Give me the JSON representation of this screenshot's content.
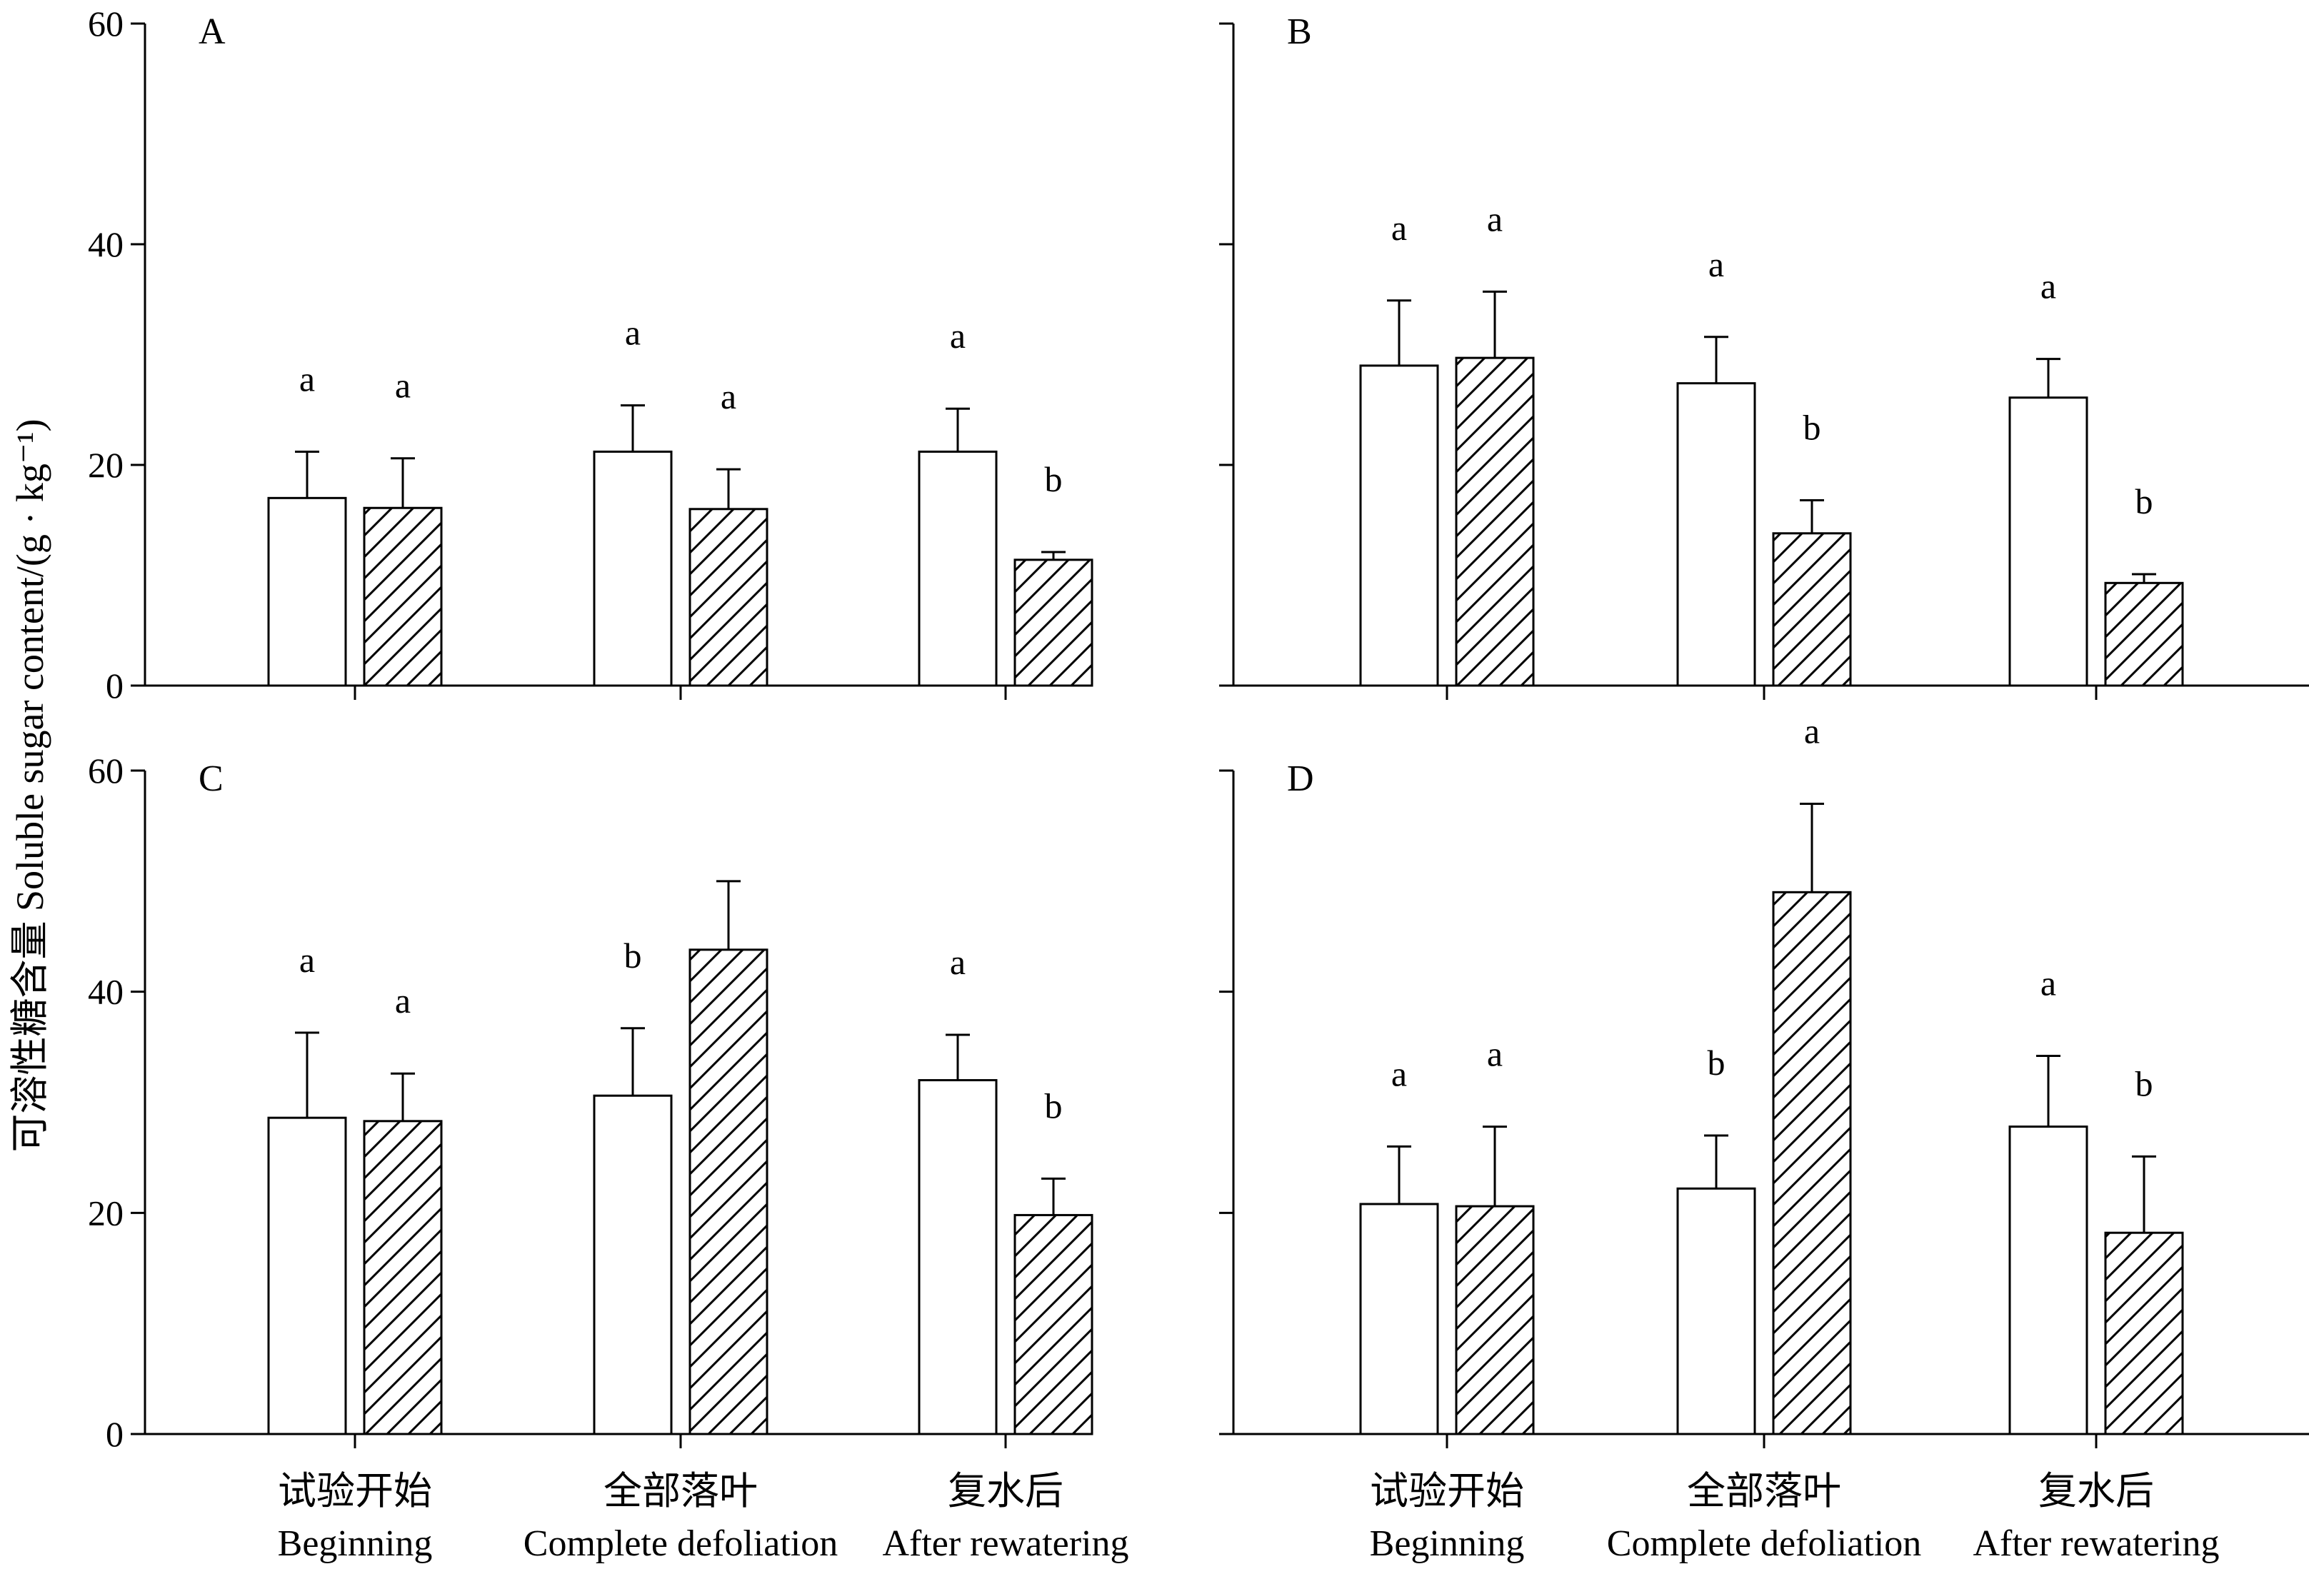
{
  "chart_data": {
    "type": "bar",
    "ylabel": "可溶性糖含量 Soluble sugar content/(g · kg⁻¹)",
    "ylim": [
      0,
      60
    ],
    "yticks": [
      "0",
      "20",
      "40",
      "60"
    ],
    "categories": [
      {
        "cn": "试验开始",
        "en": "Beginning"
      },
      {
        "cn": "全部落叶",
        "en": "Complete defoliation"
      },
      {
        "cn": "复水后",
        "en": "After rewatering"
      }
    ],
    "series_styles": [
      "open",
      "hatched"
    ],
    "panels": [
      {
        "label": "A",
        "series": [
          {
            "style": "open",
            "values": [
              17.0,
              21.2,
              21.2
            ],
            "errors": [
              4.2,
              4.2,
              3.9
            ],
            "letters": [
              "a",
              "a",
              "a"
            ]
          },
          {
            "style": "hatched",
            "values": [
              16.1,
              16.0,
              11.4
            ],
            "errors": [
              4.5,
              3.6,
              0.7
            ],
            "letters": [
              "a",
              "a",
              "b"
            ]
          }
        ]
      },
      {
        "label": "B",
        "series": [
          {
            "style": "open",
            "values": [
              29.0,
              27.4,
              26.1
            ],
            "errors": [
              5.9,
              4.2,
              3.5
            ],
            "letters": [
              "a",
              "a",
              "a"
            ]
          },
          {
            "style": "hatched",
            "values": [
              29.7,
              13.8,
              9.3
            ],
            "errors": [
              6.0,
              3.0,
              0.8
            ],
            "letters": [
              "a",
              "b",
              "b"
            ]
          }
        ]
      },
      {
        "label": "C",
        "series": [
          {
            "style": "open",
            "values": [
              28.6,
              30.6,
              32.0
            ],
            "errors": [
              7.7,
              6.1,
              4.1
            ],
            "letters": [
              "a",
              "b",
              "a"
            ]
          },
          {
            "style": "hatched",
            "values": [
              28.3,
              43.8,
              19.8
            ],
            "errors": [
              4.3,
              6.2,
              3.3
            ],
            "letters": [
              "a",
              "",
              "b"
            ]
          }
        ]
      },
      {
        "label": "D",
        "series": [
          {
            "style": "open",
            "values": [
              20.8,
              22.2,
              27.8
            ],
            "errors": [
              5.2,
              4.8,
              6.4
            ],
            "letters": [
              "a",
              "b",
              "a"
            ]
          },
          {
            "style": "hatched",
            "values": [
              20.6,
              49.0,
              18.2
            ],
            "errors": [
              7.2,
              8.0,
              6.9
            ],
            "letters": [
              "a",
              "a",
              "b"
            ]
          }
        ]
      }
    ]
  }
}
